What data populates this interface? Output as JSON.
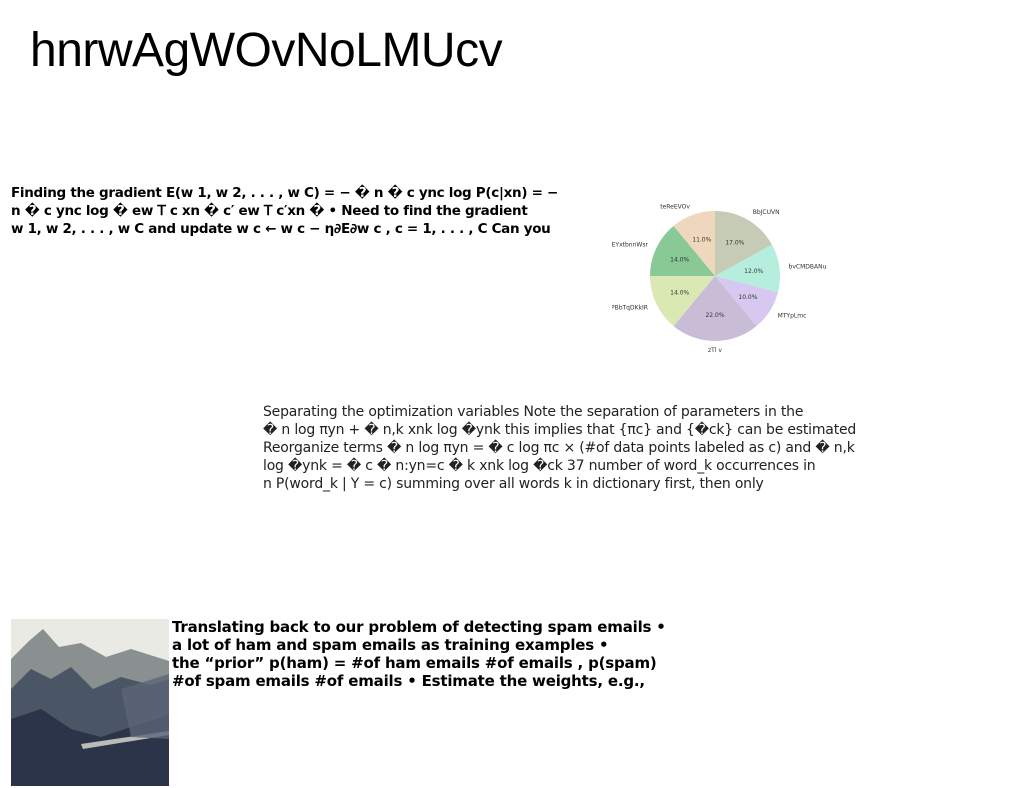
{
  "title": "hnrwAgWOvNoLMUcv",
  "paragraph_a": {
    "lines": [
      "Finding the gradient E(w 1, w 2, . . . , w C) = − � n � c ync log P(c|xn) = −",
      "n � c ync log � ew 𝖳 c xn � c′ ew 𝖳 c′xn � • Need to find the gradient",
      "w 1, w 2, . . . , w C and update w c ← w c − η∂E∂w c , c = 1, . . . , C Can you"
    ]
  },
  "paragraph_b": {
    "lines": [
      "Separating the optimization variables Note the separation of parameters in the",
      "� n log πyn + � n,k xnk log �ynk this implies that {πc} and {�ck} can be estimated",
      "Reorganize terms � n log πyn = � c log πc × (#of data points labeled as c) and � n,k",
      "log �ynk = � c � n:yn=c � k xnk log �ck 37 number of word_k occurrences in",
      "n P(word_k | Y = c) summing over all words k in dictionary first, then only"
    ]
  },
  "paragraph_c": {
    "lines": [
      "Translating back to our problem of detecting spam emails •",
      "a lot of ham and spam emails as training examples •",
      "the “prior” p(ham) = #of ham emails #of emails , p(spam)",
      "#of spam emails #of emails • Estimate the weights, e.g.,"
    ]
  },
  "chart_data": {
    "type": "pie",
    "title": "",
    "start_angle_deg": 90,
    "direction": "clockwise",
    "slices": [
      {
        "label": "BbJCUVN",
        "value": 17.0,
        "pct_label": "17.0%",
        "color": "#c5cbb5"
      },
      {
        "label": "bvCMDBANu",
        "value": 12.0,
        "pct_label": "12.0%",
        "color": "#b6eedd"
      },
      {
        "label": "MTYpLmc",
        "value": 10.0,
        "pct_label": "10.0%",
        "color": "#d6c8f0"
      },
      {
        "label": "zTl v",
        "value": 22.0,
        "pct_label": "22.0%",
        "color": "#c9bcd6"
      },
      {
        "label": "PBbTqDKkIR",
        "value": 14.0,
        "pct_label": "14.0%",
        "color": "#dae9b3"
      },
      {
        "label": "EYxtbnnWsr",
        "value": 14.0,
        "pct_label": "14.0%",
        "color": "#88c995"
      },
      {
        "label": "teReEVOv",
        "value": 11.0,
        "pct_label": "11.0%",
        "color": "#efd7bd"
      }
    ]
  },
  "photo": {
    "description_icon": "mountain-valley-photo",
    "colors": {
      "sky": "#e9eae4",
      "far_mountain": "#8a9090",
      "mid_mountain": "#4a5566",
      "near_slope": "#2b3448",
      "road": "#b9bcb8"
    }
  }
}
